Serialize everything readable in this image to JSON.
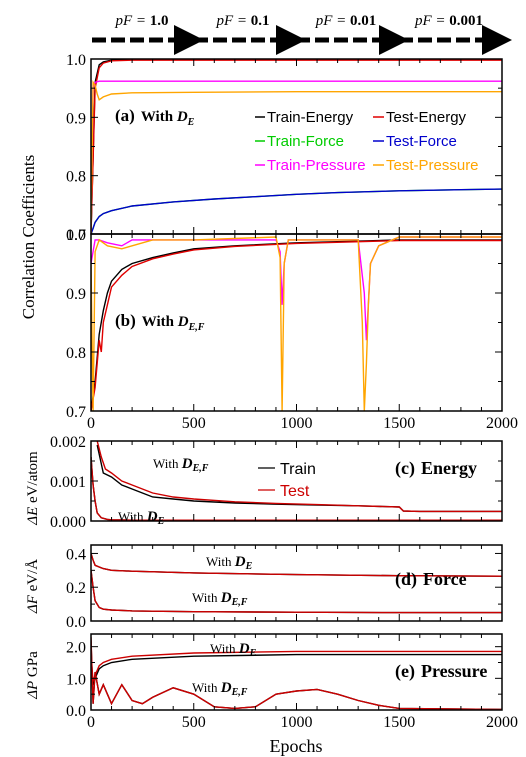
{
  "header": {
    "stages": [
      {
        "prefix": "pF = ",
        "value": "1.0"
      },
      {
        "prefix": "pF = ",
        "value": "0.1"
      },
      {
        "prefix": "pF = ",
        "value": "0.01"
      },
      {
        "prefix": "pF = ",
        "value": "0.001"
      }
    ]
  },
  "shared": {
    "xlabel": "Epochs",
    "xticks": [
      "0",
      "500",
      "1000",
      "1500",
      "2000"
    ],
    "corr_ylabel": "Correlation Coefficients"
  },
  "colors": {
    "train_energy": "#000000",
    "test_energy": "#e00000",
    "train_force": "#00cc00",
    "test_force": "#0000cc",
    "train_pressure": "#ff00ff",
    "test_pressure": "#ffa500",
    "train": "#000000",
    "test": "#cc0000"
  },
  "chart_data": [
    {
      "type": "line",
      "panel_label": "(a)",
      "title_prefix": "With ",
      "title_symbol": "D",
      "title_sub": "E",
      "ylim": [
        0.7,
        1.0
      ],
      "xlim": [
        0,
        2000
      ],
      "yticks": [
        "0.7",
        "0.8",
        "0.9",
        "1.0"
      ],
      "series": [
        {
          "name": "Train-Energy",
          "x": [
            0,
            20,
            40,
            60,
            100,
            200,
            500,
            1000,
            1500,
            2000
          ],
          "y": [
            0.7,
            0.96,
            0.99,
            0.995,
            0.998,
            0.999,
            0.999,
            0.999,
            0.999,
            0.999
          ]
        },
        {
          "name": "Test-Energy",
          "x": [
            0,
            20,
            40,
            60,
            100,
            200,
            500,
            1000,
            1500,
            2000
          ],
          "y": [
            0.7,
            0.95,
            0.985,
            0.993,
            0.997,
            0.998,
            0.998,
            0.998,
            0.998,
            0.998
          ]
        },
        {
          "name": "Train-Force",
          "x": [
            0,
            10,
            20,
            40,
            60,
            100,
            200,
            400,
            600,
            800,
            1000,
            1200,
            1500,
            1800,
            2000
          ],
          "y": [
            0.7,
            0.71,
            0.72,
            0.73,
            0.735,
            0.74,
            0.748,
            0.755,
            0.76,
            0.764,
            0.768,
            0.771,
            0.774,
            0.776,
            0.777
          ]
        },
        {
          "name": "Test-Force",
          "x": [
            0,
            10,
            20,
            40,
            60,
            100,
            200,
            400,
            600,
            800,
            1000,
            1200,
            1500,
            1800,
            2000
          ],
          "y": [
            0.7,
            0.71,
            0.72,
            0.73,
            0.735,
            0.74,
            0.748,
            0.755,
            0.76,
            0.764,
            0.768,
            0.771,
            0.774,
            0.776,
            0.777
          ]
        },
        {
          "name": "Train-Pressure",
          "x": [
            0,
            10,
            20,
            40,
            60,
            100,
            200,
            500,
            1000,
            1500,
            2000
          ],
          "y": [
            0.7,
            0.95,
            0.96,
            0.962,
            0.962,
            0.962,
            0.962,
            0.962,
            0.962,
            0.962,
            0.962
          ]
        },
        {
          "name": "Test-Pressure",
          "x": [
            0,
            10,
            20,
            30,
            40,
            60,
            100,
            200,
            500,
            1000,
            1500,
            2000
          ],
          "y": [
            0.7,
            0.96,
            0.955,
            0.94,
            0.93,
            0.935,
            0.94,
            0.942,
            0.943,
            0.944,
            0.944,
            0.944
          ]
        }
      ]
    },
    {
      "type": "line",
      "panel_label": "(b)",
      "title_prefix": "With ",
      "title_symbol": "D",
      "title_sub": "E,F",
      "ylim": [
        0.7,
        1.0
      ],
      "xlim": [
        0,
        2000
      ],
      "yticks": [
        "0.7",
        "0.8",
        "0.9",
        "1.0"
      ],
      "series": [
        {
          "name": "Train-Energy",
          "x": [
            0,
            20,
            40,
            60,
            80,
            100,
            150,
            200,
            300,
            400,
            500,
            700,
            1000,
            1500,
            2000
          ],
          "y": [
            0.7,
            0.75,
            0.83,
            0.87,
            0.9,
            0.92,
            0.94,
            0.95,
            0.96,
            0.968,
            0.975,
            0.98,
            0.985,
            0.99,
            0.99
          ]
        },
        {
          "name": "Test-Energy",
          "x": [
            0,
            20,
            40,
            50,
            60,
            80,
            100,
            150,
            200,
            300,
            400,
            500,
            700,
            1000,
            1500,
            2000
          ],
          "y": [
            0.7,
            0.74,
            0.82,
            0.8,
            0.85,
            0.88,
            0.91,
            0.93,
            0.945,
            0.958,
            0.966,
            0.973,
            0.979,
            0.984,
            0.989,
            0.989
          ]
        },
        {
          "name": "Train-Pressure",
          "x": [
            0,
            20,
            40,
            80,
            150,
            200,
            300,
            500,
            900,
            920,
            930,
            940,
            960,
            1000,
            1300,
            1330,
            1340,
            1360,
            1400,
            1500,
            2000
          ],
          "y": [
            0.95,
            0.99,
            0.99,
            0.985,
            0.98,
            0.99,
            0.99,
            0.99,
            0.99,
            0.97,
            0.88,
            0.95,
            0.99,
            0.99,
            0.99,
            0.9,
            0.82,
            0.95,
            0.98,
            0.995,
            0.995
          ]
        },
        {
          "name": "Test-Pressure",
          "x": [
            0,
            10,
            20,
            40,
            80,
            150,
            200,
            300,
            500,
            900,
            920,
            930,
            940,
            960,
            1000,
            1300,
            1320,
            1330,
            1340,
            1350,
            1360,
            1400,
            1500,
            2000
          ],
          "y": [
            0.95,
            0.7,
            0.97,
            0.99,
            0.98,
            0.975,
            0.98,
            0.99,
            0.99,
            0.995,
            0.96,
            0.7,
            0.95,
            0.99,
            0.99,
            0.99,
            0.85,
            0.7,
            0.78,
            0.88,
            0.95,
            0.98,
            0.995,
            0.995
          ]
        }
      ]
    },
    {
      "type": "line",
      "panel_label": "(c)",
      "title": "Energy",
      "ylabel_symbol": "ΔE",
      "ylabel_unit": " eV/atom",
      "ylim": [
        0,
        0.002
      ],
      "xlim": [
        0,
        2000
      ],
      "yticks": [
        "0.000",
        "0.001",
        "0.002"
      ],
      "legend": [
        "Train",
        "Test"
      ],
      "annotation_de": {
        "prefix": "With ",
        "symbol": "D",
        "sub": "E"
      },
      "annotation_def": {
        "prefix": "With ",
        "symbol": "D",
        "sub": "E,F"
      },
      "series": [
        {
          "name": "Train",
          "model": "D_E",
          "x": [
            0,
            10,
            20,
            30,
            50,
            80,
            100,
            200,
            500,
            1000,
            1500,
            2000
          ],
          "y": [
            0.0016,
            0.0009,
            0.0005,
            0.0002,
            8e-05,
            4e-05,
            3e-05,
            2e-05,
            2e-05,
            2e-05,
            2e-05,
            2e-05
          ]
        },
        {
          "name": "Test",
          "model": "D_E",
          "x": [
            0,
            10,
            20,
            30,
            50,
            80,
            100,
            200,
            500,
            1000,
            1500,
            2000
          ],
          "y": [
            0.0016,
            0.0009,
            0.0005,
            0.0002,
            8e-05,
            4e-05,
            3e-05,
            2e-05,
            2e-05,
            2e-05,
            2e-05,
            2e-05
          ]
        },
        {
          "name": "Train",
          "model": "D_EF",
          "x": [
            30,
            60,
            100,
            150,
            200,
            250,
            300,
            400,
            500,
            700,
            900,
            1100,
            1300,
            1500,
            1520,
            1600,
            2000
          ],
          "y": [
            0.0019,
            0.0012,
            0.0011,
            0.0009,
            0.0008,
            0.0007,
            0.0006,
            0.00055,
            0.0005,
            0.00045,
            0.00042,
            0.0004,
            0.00038,
            0.00035,
            0.00025,
            0.00024,
            0.00024
          ]
        },
        {
          "name": "Test",
          "model": "D_EF",
          "x": [
            30,
            50,
            70,
            100,
            150,
            200,
            250,
            300,
            400,
            500,
            700,
            900,
            1100,
            1300,
            1500,
            1520,
            1600,
            2000
          ],
          "y": [
            0.002,
            0.0016,
            0.0013,
            0.0012,
            0.001,
            0.0009,
            0.0008,
            0.0007,
            0.0006,
            0.00055,
            0.00048,
            0.00044,
            0.00041,
            0.00038,
            0.00035,
            0.00025,
            0.00024,
            0.00024
          ]
        }
      ]
    },
    {
      "type": "line",
      "panel_label": "(d)",
      "title": "Force",
      "ylabel_symbol": "ΔF",
      "ylabel_unit": " eV/Å",
      "ylim": [
        0,
        0.45
      ],
      "xlim": [
        0,
        2000
      ],
      "yticks": [
        "0.0",
        "0.2",
        "0.4"
      ],
      "annotation_de": {
        "prefix": "With ",
        "symbol": "D",
        "sub": "E"
      },
      "annotation_def": {
        "prefix": "With ",
        "symbol": "D",
        "sub": "E,F"
      },
      "series": [
        {
          "name": "Train",
          "model": "D_E",
          "x": [
            0,
            10,
            20,
            40,
            60,
            100,
            200,
            500,
            1000,
            1500,
            2000
          ],
          "y": [
            0.4,
            0.36,
            0.33,
            0.32,
            0.31,
            0.3,
            0.295,
            0.285,
            0.275,
            0.268,
            0.265
          ]
        },
        {
          "name": "Test",
          "model": "D_E",
          "x": [
            0,
            10,
            20,
            40,
            60,
            100,
            200,
            500,
            1000,
            1500,
            2000
          ],
          "y": [
            0.4,
            0.36,
            0.33,
            0.32,
            0.31,
            0.3,
            0.295,
            0.285,
            0.275,
            0.268,
            0.265
          ]
        },
        {
          "name": "Train",
          "model": "D_EF",
          "x": [
            0,
            10,
            20,
            40,
            60,
            100,
            200,
            500,
            1000,
            1500,
            2000
          ],
          "y": [
            0.3,
            0.2,
            0.12,
            0.08,
            0.07,
            0.065,
            0.06,
            0.055,
            0.052,
            0.05,
            0.05
          ]
        },
        {
          "name": "Test",
          "model": "D_EF",
          "x": [
            0,
            10,
            20,
            40,
            60,
            100,
            200,
            500,
            1000,
            1500,
            2000
          ],
          "y": [
            0.3,
            0.2,
            0.12,
            0.08,
            0.07,
            0.065,
            0.06,
            0.055,
            0.052,
            0.05,
            0.05
          ]
        }
      ]
    },
    {
      "type": "line",
      "panel_label": "(e)",
      "title": "Pressure",
      "ylabel_symbol": "ΔP",
      "ylabel_unit": " GPa",
      "ylim": [
        0,
        2.4
      ],
      "xlim": [
        0,
        2000
      ],
      "yticks": [
        "0.0",
        "1.0",
        "2.0"
      ],
      "annotation_de": {
        "prefix": "With ",
        "symbol": "D",
        "sub": "E"
      },
      "annotation_def": {
        "prefix": "With ",
        "symbol": "D",
        "sub": "E,F"
      },
      "series": [
        {
          "name": "Train",
          "model": "D_E",
          "x": [
            0,
            10,
            20,
            40,
            60,
            100,
            200,
            500,
            1000,
            1500,
            2000
          ],
          "y": [
            1.6,
            0.8,
            1.0,
            1.3,
            1.4,
            1.5,
            1.6,
            1.7,
            1.75,
            1.75,
            1.75
          ]
        },
        {
          "name": "Test",
          "model": "D_E",
          "x": [
            0,
            10,
            20,
            40,
            60,
            100,
            200,
            500,
            1000,
            1500,
            2000
          ],
          "y": [
            1.7,
            0.9,
            1.1,
            1.4,
            1.5,
            1.6,
            1.7,
            1.8,
            1.85,
            1.85,
            1.85
          ]
        },
        {
          "name": "Train",
          "model": "D_EF",
          "x": [
            0,
            10,
            20,
            40,
            60,
            100,
            150,
            200,
            250,
            300,
            400,
            500,
            600,
            700,
            800,
            900,
            1000,
            1100,
            1200,
            1300,
            1400,
            1500,
            2000
          ],
          "y": [
            2.2,
            0.2,
            1.2,
            0.5,
            0.8,
            0.2,
            0.8,
            0.3,
            0.2,
            0.4,
            0.7,
            0.5,
            0.1,
            0.05,
            0.1,
            0.5,
            0.6,
            0.65,
            0.5,
            0.3,
            0.15,
            0.05,
            0.02
          ]
        },
        {
          "name": "Test",
          "model": "D_EF",
          "x": [
            0,
            10,
            20,
            40,
            60,
            100,
            150,
            200,
            250,
            300,
            400,
            500,
            600,
            700,
            800,
            900,
            1000,
            1100,
            1200,
            1300,
            1400,
            1500,
            2000
          ],
          "y": [
            2.3,
            0.2,
            1.2,
            0.5,
            0.8,
            0.2,
            0.8,
            0.3,
            0.2,
            0.4,
            0.7,
            0.5,
            0.1,
            0.05,
            0.1,
            0.5,
            0.6,
            0.65,
            0.5,
            0.3,
            0.15,
            0.05,
            0.02
          ]
        }
      ]
    }
  ]
}
